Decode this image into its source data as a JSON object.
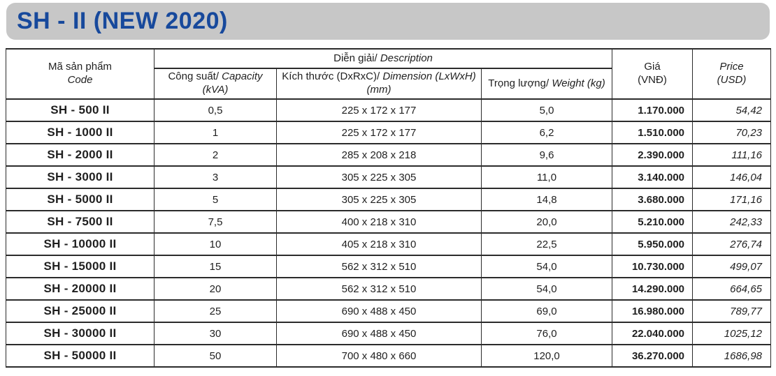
{
  "page_title": "SH - II (NEW 2020)",
  "colors": {
    "title_blue": "#17499c",
    "banner_gray": "#c7c7c7",
    "border_dark": "#2b2b2b",
    "text": "#1f1f1f"
  },
  "table": {
    "headers": {
      "code": {
        "line1": "Mã sản phẩm",
        "line2": "Code"
      },
      "description": {
        "normal": "Diễn giải/",
        "italic": "Description"
      },
      "capacity": {
        "normal": "Công suất/",
        "italic": "Capacity",
        "unit": "(kVA)"
      },
      "dimension": {
        "normal": "Kích thước (DxRxC)/",
        "italic": "Dimension (LxWxH)",
        "unit": "(mm)"
      },
      "weight": {
        "normal": "Trọng lượng/",
        "italic": "Weight (kg)"
      },
      "price_vnd": {
        "line1": "Giá",
        "line2": "(VNĐ)"
      },
      "price_usd": {
        "line1": "Price",
        "line2": "(USD)"
      }
    },
    "rows": [
      {
        "code": "SH - 500 II",
        "capacity": "0,5",
        "dimension": "225 x 172 x 177",
        "weight": "5,0",
        "price_vnd": "1.170.000",
        "price_usd": "54,42"
      },
      {
        "code": "SH - 1000 II",
        "capacity": "1",
        "dimension": "225 x 172 x 177",
        "weight": "6,2",
        "price_vnd": "1.510.000",
        "price_usd": "70,23"
      },
      {
        "code": "SH - 2000 II",
        "capacity": "2",
        "dimension": "285 x 208 x 218",
        "weight": "9,6",
        "price_vnd": "2.390.000",
        "price_usd": "111,16"
      },
      {
        "code": "SH - 3000 II",
        "capacity": "3",
        "dimension": "305 x 225 x 305",
        "weight": "11,0",
        "price_vnd": "3.140.000",
        "price_usd": "146,04"
      },
      {
        "code": "SH - 5000 II",
        "capacity": "5",
        "dimension": "305 x 225 x 305",
        "weight": "14,8",
        "price_vnd": "3.680.000",
        "price_usd": "171,16"
      },
      {
        "code": "SH - 7500 II",
        "capacity": "7,5",
        "dimension": "400 x 218 x 310",
        "weight": "20,0",
        "price_vnd": "5.210.000",
        "price_usd": "242,33"
      },
      {
        "code": "SH - 10000 II",
        "capacity": "10",
        "dimension": "405 x 218 x 310",
        "weight": "22,5",
        "price_vnd": "5.950.000",
        "price_usd": "276,74"
      },
      {
        "code": "SH - 15000 II",
        "capacity": "15",
        "dimension": "562 x 312 x 510",
        "weight": "54,0",
        "price_vnd": "10.730.000",
        "price_usd": "499,07"
      },
      {
        "code": "SH - 20000 II",
        "capacity": "20",
        "dimension": "562 x 312 x 510",
        "weight": "54,0",
        "price_vnd": "14.290.000",
        "price_usd": "664,65"
      },
      {
        "code": "SH - 25000 II",
        "capacity": "25",
        "dimension": "690 x 488 x 450",
        "weight": "69,0",
        "price_vnd": "16.980.000",
        "price_usd": "789,77"
      },
      {
        "code": "SH - 30000 II",
        "capacity": "30",
        "dimension": "690 x 488 x 450",
        "weight": "76,0",
        "price_vnd": "22.040.000",
        "price_usd": "1025,12"
      },
      {
        "code": "SH - 50000 II",
        "capacity": "50",
        "dimension": "700 x 480 x 660",
        "weight": "120,0",
        "price_vnd": "36.270.000",
        "price_usd": "1686,98"
      }
    ]
  }
}
